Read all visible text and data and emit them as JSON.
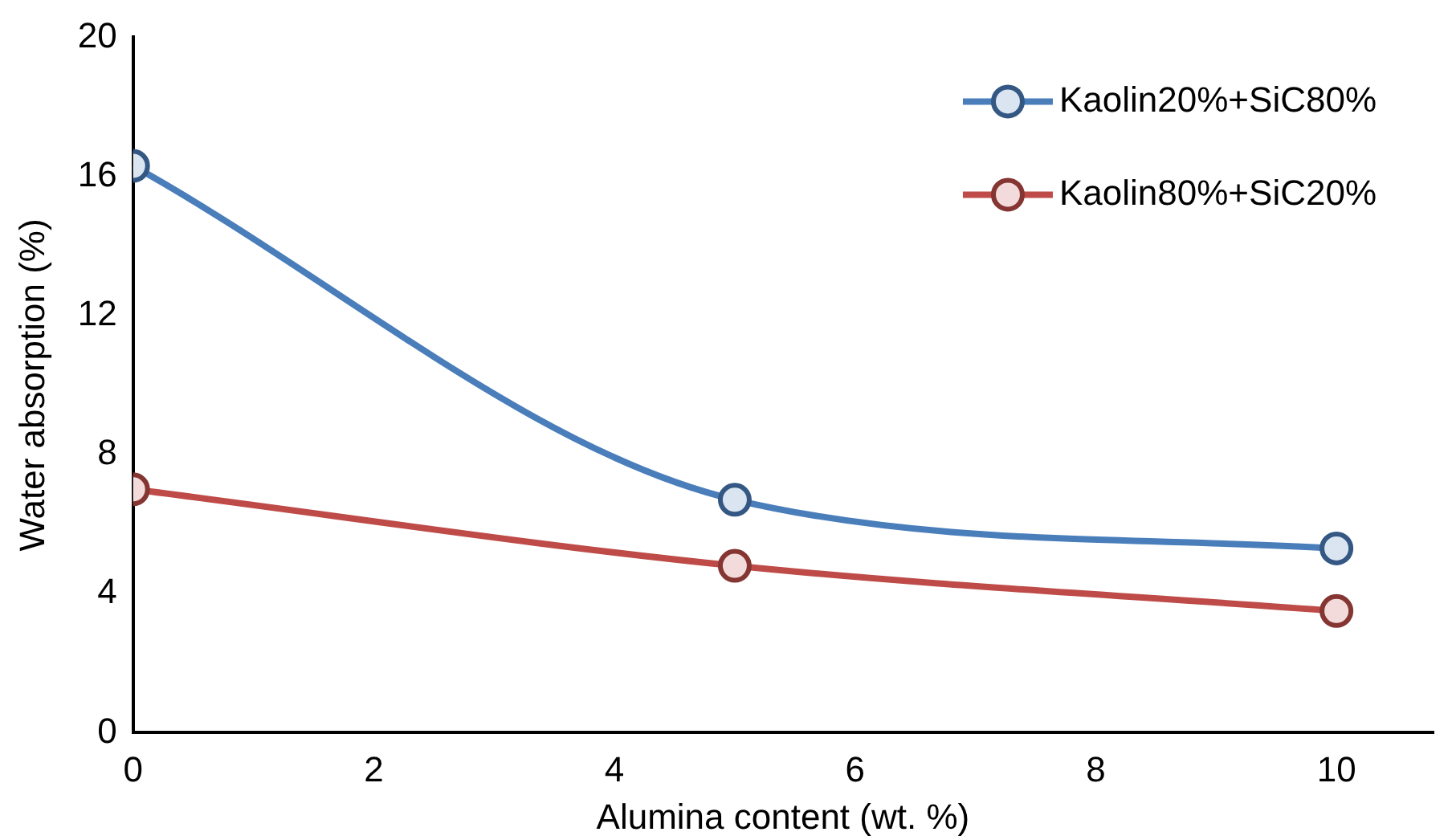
{
  "chart_data": {
    "type": "line",
    "xlabel": "Alumina content (wt. %)",
    "ylabel": "Water absorption (%)",
    "x": [
      0,
      5,
      10
    ],
    "series": [
      {
        "name": "Kaolin20%+SiC80%",
        "color": "#4a7ebb",
        "values": [
          16.3,
          6.7,
          5.3
        ]
      },
      {
        "name": "Kaolin80%+SiC20%",
        "color": "#be4b48",
        "values": [
          7.0,
          4.8,
          3.5
        ]
      }
    ],
    "xlim": [
      0,
      10.8
    ],
    "xticks": [
      0,
      2,
      4,
      6,
      8,
      10
    ],
    "ylim": [
      0,
      20
    ],
    "yticks": [
      0,
      4,
      8,
      12,
      16,
      20
    ],
    "grid": false,
    "legend": "top right",
    "marker": "circle",
    "line_style": "solid"
  }
}
